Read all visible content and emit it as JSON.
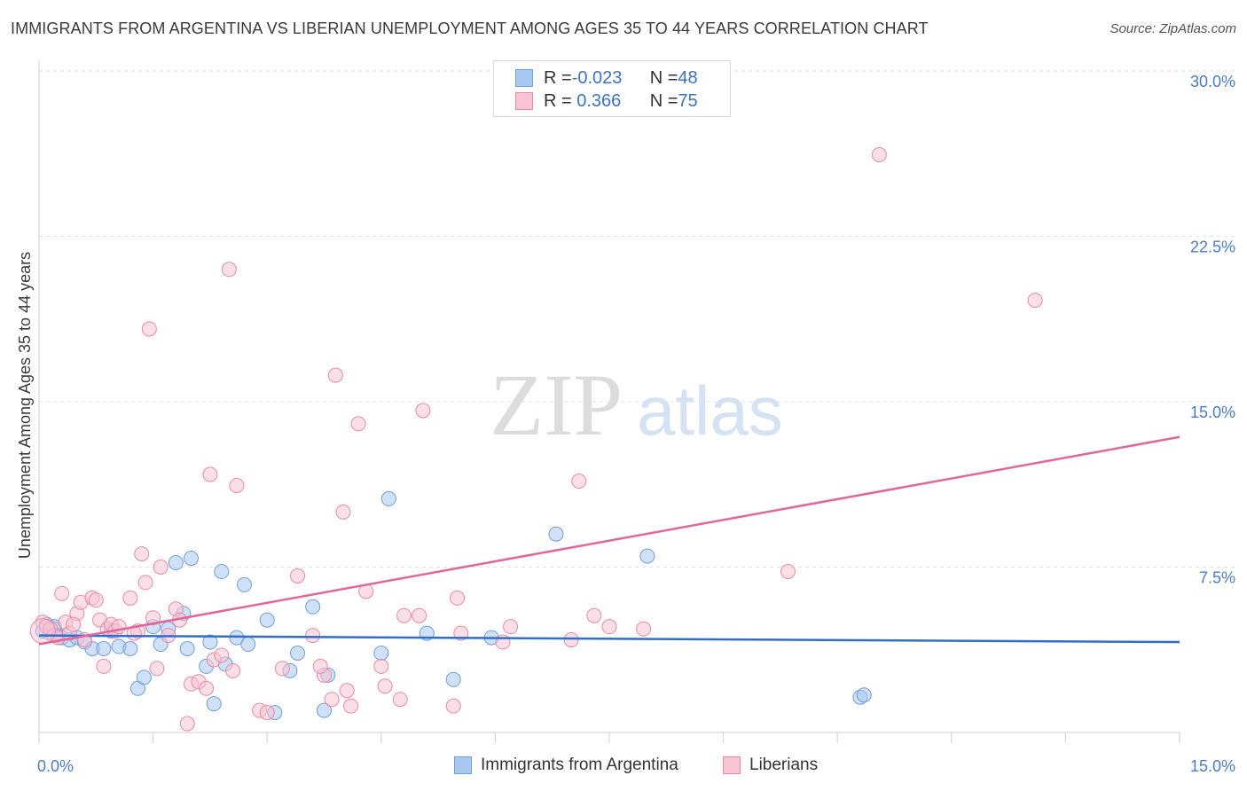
{
  "header": {
    "title": "IMMIGRANTS FROM ARGENTINA VS LIBERIAN UNEMPLOYMENT AMONG AGES 35 TO 44 YEARS CORRELATION CHART",
    "source": "Source: ZipAtlas.com"
  },
  "watermark": {
    "zip": "ZIP",
    "atlas": "atlas"
  },
  "legend_top": {
    "rows": [
      {
        "r_label": "R = ",
        "r_value": "-0.023",
        "n_label": "N = ",
        "n_value": "48",
        "color": "#a9c8f0",
        "border": "#6f9fdc"
      },
      {
        "r_label": "R = ",
        "r_value": " 0.366",
        "n_label": "N = ",
        "n_value": "75",
        "color": "#f8c4d4",
        "border": "#e88aa6"
      }
    ]
  },
  "legend_bottom": [
    {
      "label": "Immigrants from Argentina",
      "color": "#a9c8f0",
      "border": "#6f9fdc"
    },
    {
      "label": "Liberians",
      "color": "#f8c4d4",
      "border": "#e88aa6"
    }
  ],
  "chart_data": {
    "type": "scatter",
    "title": "IMMIGRANTS FROM ARGENTINA VS LIBERIAN UNEMPLOYMENT AMONG AGES 35 TO 44 YEARS CORRELATION CHART",
    "xlabel": "",
    "ylabel": "Unemployment Among Ages 35 to 44 years",
    "xlim": [
      0,
      15
    ],
    "ylim": [
      0,
      30
    ],
    "x_ticks": [
      "0.0%",
      "15.0%"
    ],
    "y_ticks": [
      {
        "value": 7.5,
        "label": "7.5%"
      },
      {
        "value": 15.0,
        "label": "15.0%"
      },
      {
        "value": 22.5,
        "label": "22.5%"
      },
      {
        "value": 30.0,
        "label": "30.0%"
      }
    ],
    "grid": "horizontal-dashed",
    "series": [
      {
        "name": "Immigrants from Argentina",
        "color": "#6f9fdc",
        "fill": "#a9c8f0",
        "trend": {
          "x": [
            0,
            15
          ],
          "y": [
            4.4,
            4.1
          ]
        },
        "points": [
          [
            0.05,
            4.6
          ],
          [
            0.1,
            4.9
          ],
          [
            0.15,
            4.5
          ],
          [
            0.2,
            4.7
          ],
          [
            0.25,
            4.4
          ],
          [
            0.3,
            4.3
          ],
          [
            0.4,
            4.2
          ],
          [
            0.5,
            4.3
          ],
          [
            0.6,
            4.1
          ],
          [
            0.7,
            3.8
          ],
          [
            0.85,
            3.8
          ],
          [
            0.95,
            4.6
          ],
          [
            1.05,
            3.9
          ],
          [
            1.2,
            3.8
          ],
          [
            1.3,
            2.0
          ],
          [
            1.38,
            2.5
          ],
          [
            1.5,
            4.8
          ],
          [
            1.6,
            4.0
          ],
          [
            1.7,
            4.7
          ],
          [
            1.8,
            7.7
          ],
          [
            1.9,
            5.4
          ],
          [
            1.95,
            3.8
          ],
          [
            2.0,
            7.9
          ],
          [
            2.2,
            3.0
          ],
          [
            2.25,
            4.1
          ],
          [
            2.3,
            1.3
          ],
          [
            2.4,
            7.3
          ],
          [
            2.45,
            3.1
          ],
          [
            2.6,
            4.3
          ],
          [
            2.7,
            6.7
          ],
          [
            2.75,
            4.0
          ],
          [
            3.0,
            5.1
          ],
          [
            3.1,
            0.9
          ],
          [
            3.3,
            2.8
          ],
          [
            3.4,
            3.6
          ],
          [
            3.6,
            5.7
          ],
          [
            3.75,
            1.0
          ],
          [
            3.8,
            2.6
          ],
          [
            4.5,
            3.6
          ],
          [
            4.6,
            10.6
          ],
          [
            5.1,
            4.5
          ],
          [
            5.45,
            2.4
          ],
          [
            5.95,
            4.3
          ],
          [
            6.8,
            9.0
          ],
          [
            8.0,
            8.0
          ],
          [
            10.8,
            1.6
          ],
          [
            10.85,
            1.7
          ],
          [
            0.2,
            4.8
          ]
        ]
      },
      {
        "name": "Liberians",
        "color": "#e88aa6",
        "fill": "#f8c4d4",
        "trend": {
          "x": [
            0,
            15
          ],
          "y": [
            4.0,
            13.4
          ]
        },
        "points": [
          [
            0.05,
            5.0
          ],
          [
            0.1,
            4.8
          ],
          [
            0.15,
            4.7
          ],
          [
            0.2,
            4.4
          ],
          [
            0.25,
            4.3
          ],
          [
            0.3,
            6.3
          ],
          [
            0.35,
            5.0
          ],
          [
            0.4,
            4.5
          ],
          [
            0.5,
            5.4
          ],
          [
            0.55,
            5.9
          ],
          [
            0.6,
            4.2
          ],
          [
            0.7,
            6.1
          ],
          [
            0.75,
            6.0
          ],
          [
            0.8,
            5.1
          ],
          [
            0.85,
            3.0
          ],
          [
            0.9,
            4.7
          ],
          [
            0.95,
            4.9
          ],
          [
            1.0,
            4.6
          ],
          [
            1.05,
            4.8
          ],
          [
            1.2,
            6.1
          ],
          [
            1.3,
            4.6
          ],
          [
            1.35,
            8.1
          ],
          [
            1.4,
            6.8
          ],
          [
            1.45,
            18.3
          ],
          [
            1.5,
            5.2
          ],
          [
            1.55,
            2.9
          ],
          [
            1.6,
            7.5
          ],
          [
            1.7,
            4.4
          ],
          [
            1.8,
            5.6
          ],
          [
            1.85,
            5.1
          ],
          [
            1.95,
            0.4
          ],
          [
            2.0,
            2.2
          ],
          [
            2.1,
            2.3
          ],
          [
            2.2,
            2.0
          ],
          [
            2.25,
            11.7
          ],
          [
            2.3,
            3.3
          ],
          [
            2.4,
            3.5
          ],
          [
            2.5,
            21.0
          ],
          [
            2.55,
            2.8
          ],
          [
            2.6,
            11.2
          ],
          [
            2.9,
            1.0
          ],
          [
            3.0,
            0.9
          ],
          [
            3.2,
            2.9
          ],
          [
            3.4,
            7.1
          ],
          [
            3.6,
            4.4
          ],
          [
            3.75,
            2.6
          ],
          [
            3.85,
            1.5
          ],
          [
            3.9,
            16.2
          ],
          [
            4.0,
            10.0
          ],
          [
            4.05,
            1.9
          ],
          [
            4.2,
            14.0
          ],
          [
            4.3,
            6.4
          ],
          [
            4.5,
            3.0
          ],
          [
            4.55,
            2.1
          ],
          [
            4.75,
            1.5
          ],
          [
            4.8,
            5.3
          ],
          [
            5.0,
            5.3
          ],
          [
            5.05,
            14.6
          ],
          [
            5.45,
            1.2
          ],
          [
            5.5,
            6.1
          ],
          [
            5.55,
            4.5
          ],
          [
            6.1,
            4.1
          ],
          [
            6.2,
            4.8
          ],
          [
            7.0,
            4.2
          ],
          [
            7.1,
            11.4
          ],
          [
            7.3,
            5.3
          ],
          [
            7.5,
            4.8
          ],
          [
            7.95,
            4.7
          ],
          [
            9.85,
            7.3
          ],
          [
            11.05,
            26.2
          ],
          [
            13.1,
            19.6
          ],
          [
            4.1,
            1.2
          ],
          [
            0.45,
            4.9
          ],
          [
            1.25,
            4.5
          ],
          [
            3.7,
            3.0
          ]
        ]
      }
    ]
  }
}
